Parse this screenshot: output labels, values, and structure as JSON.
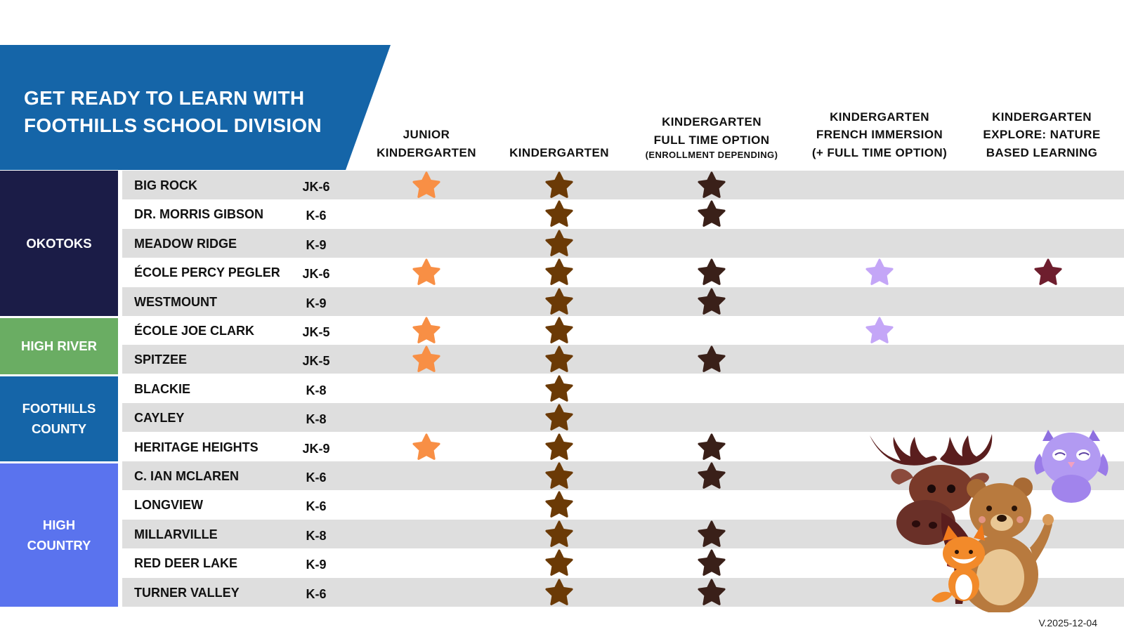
{
  "title": {
    "line1": "GET READY TO LEARN WITH",
    "line2": "FOOTHILLS SCHOOL DIVISION"
  },
  "columns": [
    {
      "key": "jk",
      "lines": [
        "JUNIOR",
        "KINDERGARTEN"
      ],
      "note": ""
    },
    {
      "key": "k",
      "lines": [
        "KINDERGARTEN"
      ],
      "note": ""
    },
    {
      "key": "kft",
      "lines": [
        "KINDERGARTEN",
        "FULL TIME OPTION"
      ],
      "note": "(ENROLLMENT DEPENDING)"
    },
    {
      "key": "kfi",
      "lines": [
        "KINDERGARTEN",
        "FRENCH IMMERSION",
        "(+ FULL TIME OPTION)"
      ],
      "note": ""
    },
    {
      "key": "kex",
      "lines": [
        "KINDERGARTEN",
        "EXPLORE: NATURE",
        "BASED LEARNING"
      ],
      "note": ""
    }
  ],
  "regions": [
    {
      "name": "OKOTOKS",
      "color": "#1b1c47"
    },
    {
      "name": "HIGH RIVER",
      "color": "#6aad63"
    },
    {
      "name": "FOOTHILLS COUNTY",
      "color": "#1565a8"
    },
    {
      "name": "HIGH COUNTRY",
      "color": "#5a73ee"
    }
  ],
  "schools": [
    {
      "name": "BIG ROCK",
      "grades": "JK-6",
      "jk": true,
      "k": true,
      "kft": true,
      "kfi": false,
      "kex": false
    },
    {
      "name": "DR. MORRIS GIBSON",
      "grades": "K-6",
      "jk": false,
      "k": true,
      "kft": true,
      "kfi": false,
      "kex": false
    },
    {
      "name": "MEADOW RIDGE",
      "grades": "K-9",
      "jk": false,
      "k": true,
      "kft": false,
      "kfi": false,
      "kex": false
    },
    {
      "name": "ÉCOLE PERCY PEGLER",
      "grades": "JK-6",
      "jk": true,
      "k": true,
      "kft": true,
      "kfi": true,
      "kex": true
    },
    {
      "name": "WESTMOUNT",
      "grades": "K-9",
      "jk": false,
      "k": true,
      "kft": true,
      "kfi": false,
      "kex": false
    },
    {
      "name": "ÉCOLE JOE CLARK",
      "grades": "JK-5",
      "jk": true,
      "k": true,
      "kft": false,
      "kfi": true,
      "kex": false
    },
    {
      "name": "SPITZEE",
      "grades": "JK-5",
      "jk": true,
      "k": true,
      "kft": true,
      "kfi": false,
      "kex": false
    },
    {
      "name": "BLACKIE",
      "grades": "K-8",
      "jk": false,
      "k": true,
      "kft": false,
      "kfi": false,
      "kex": false
    },
    {
      "name": "CAYLEY",
      "grades": "K-8",
      "jk": false,
      "k": true,
      "kft": false,
      "kfi": false,
      "kex": false
    },
    {
      "name": "HERITAGE HEIGHTS",
      "grades": "JK-9",
      "jk": true,
      "k": true,
      "kft": true,
      "kfi": false,
      "kex": false
    },
    {
      "name": "C. IAN MCLAREN",
      "grades": "K-6",
      "jk": false,
      "k": true,
      "kft": true,
      "kfi": false,
      "kex": false
    },
    {
      "name": "LONGVIEW",
      "grades": "K-6",
      "jk": false,
      "k": true,
      "kft": false,
      "kfi": false,
      "kex": false
    },
    {
      "name": "MILLARVILLE",
      "grades": "K-8",
      "jk": false,
      "k": true,
      "kft": true,
      "kfi": false,
      "kex": false
    },
    {
      "name": "RED DEER LAKE",
      "grades": "K-9",
      "jk": false,
      "k": true,
      "kft": true,
      "kfi": false,
      "kex": false
    },
    {
      "name": "TURNER VALLEY",
      "grades": "K-6",
      "jk": false,
      "k": true,
      "kft": true,
      "kfi": false,
      "kex": false
    }
  ],
  "star_colors": {
    "jk": "#f88f45",
    "k": "#6b3a06",
    "kft": "#3a2019",
    "kfi": "#c4a6f7",
    "kex": "#6e1e2e"
  },
  "mascots": [
    "moose-icon",
    "bear-icon",
    "fox-icon",
    "owl-icon"
  ],
  "version": "V.2025-12-04"
}
